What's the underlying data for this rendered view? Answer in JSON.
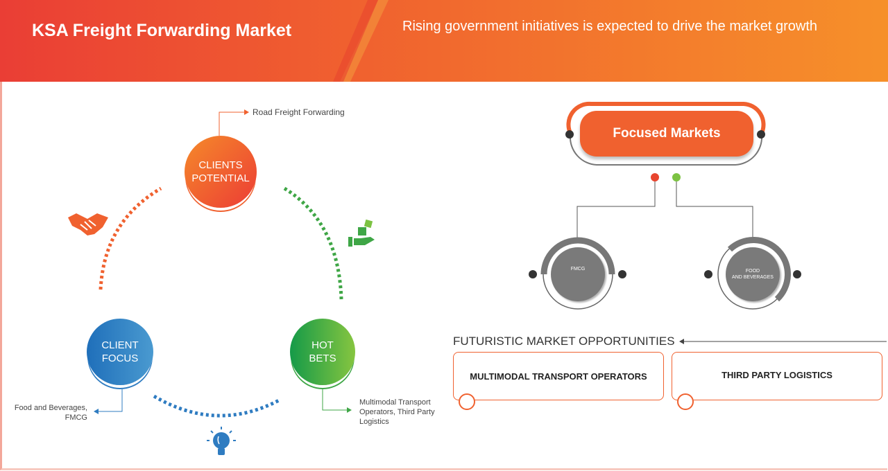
{
  "header": {
    "title": "KSA Freight Forwarding Market",
    "subtitle": "Rising government initiatives is expected to drive the market growth"
  },
  "cycle": {
    "clients_potential": {
      "line1": "CLIENTS",
      "line2": "POTENTIAL",
      "note": "Road Freight Forwarding",
      "color": "#f0612f"
    },
    "client_focus": {
      "line1": "CLIENT",
      "line2": "FOCUS",
      "note_line1": "Food and Beverages,",
      "note_line2": "FMCG",
      "color": "#2f7cc1"
    },
    "hot_bets": {
      "line1": "HOT",
      "line2": "BETS",
      "note_line1": "Multimodal Transport",
      "note_line2": "Operators, Third Party",
      "note_line3": "Logistics",
      "color": "#3fa646"
    },
    "icons": [
      "handshake-icon",
      "dice-hand-icon",
      "lightbulb-icon"
    ]
  },
  "focused": {
    "title": "Focused Markets",
    "markets": [
      {
        "label": "FMCG"
      },
      {
        "line1": "FOOD",
        "line2": "AND BEVERAGES"
      }
    ]
  },
  "futuristic": {
    "title": "FUTURISTIC MARKET OPPORTUNITIES",
    "items": [
      "MULTIMODAL TRANSPORT OPERATORS",
      "THIRD PARTY LOGISTICS"
    ]
  }
}
